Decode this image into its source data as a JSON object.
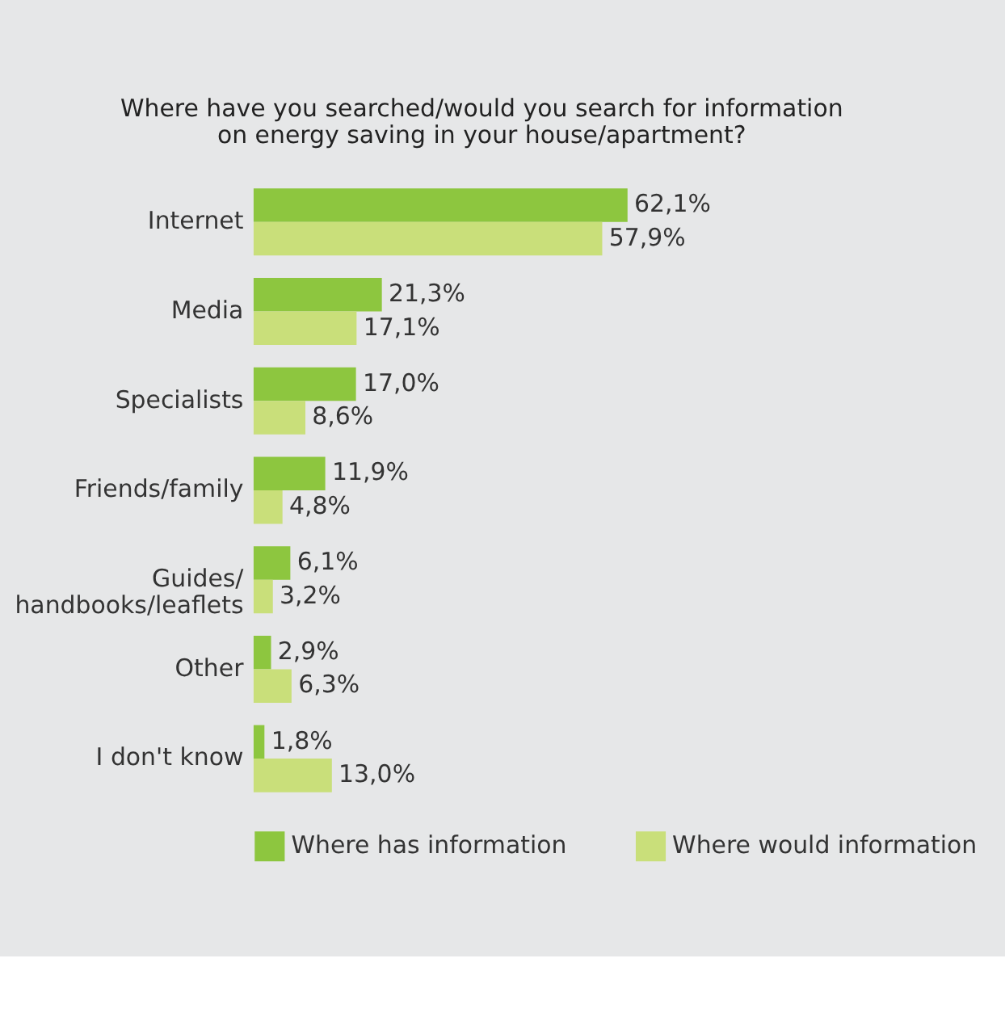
{
  "chart_data": {
    "type": "bar",
    "orientation": "horizontal",
    "title": "Where have you searched/would you search for information\non energy saving in your house/apartment?",
    "categories": [
      "Internet",
      "Media",
      "Specialists",
      "Friends/family",
      "Guides/\nhandbooks/leaflets",
      "Other",
      "I don't know"
    ],
    "series": [
      {
        "name": "Where has information",
        "color": "#8dc63f",
        "values": [
          62.1,
          21.3,
          17.0,
          11.9,
          6.1,
          2.9,
          1.8
        ],
        "value_labels": [
          "62,1%",
          "21,3%",
          "17,0%",
          "11,9%",
          "6,1%",
          "2,9%",
          "1,8%"
        ]
      },
      {
        "name": "Where would information",
        "color": "#c9df7a",
        "values": [
          57.9,
          17.1,
          8.6,
          4.8,
          3.2,
          6.3,
          13.0
        ],
        "value_labels": [
          "57,9%",
          "17,1%",
          "8,6%",
          "4,8%",
          "3,2%",
          "6,3%",
          "13,0%"
        ]
      }
    ],
    "legend": "bottom",
    "grid": false
  }
}
